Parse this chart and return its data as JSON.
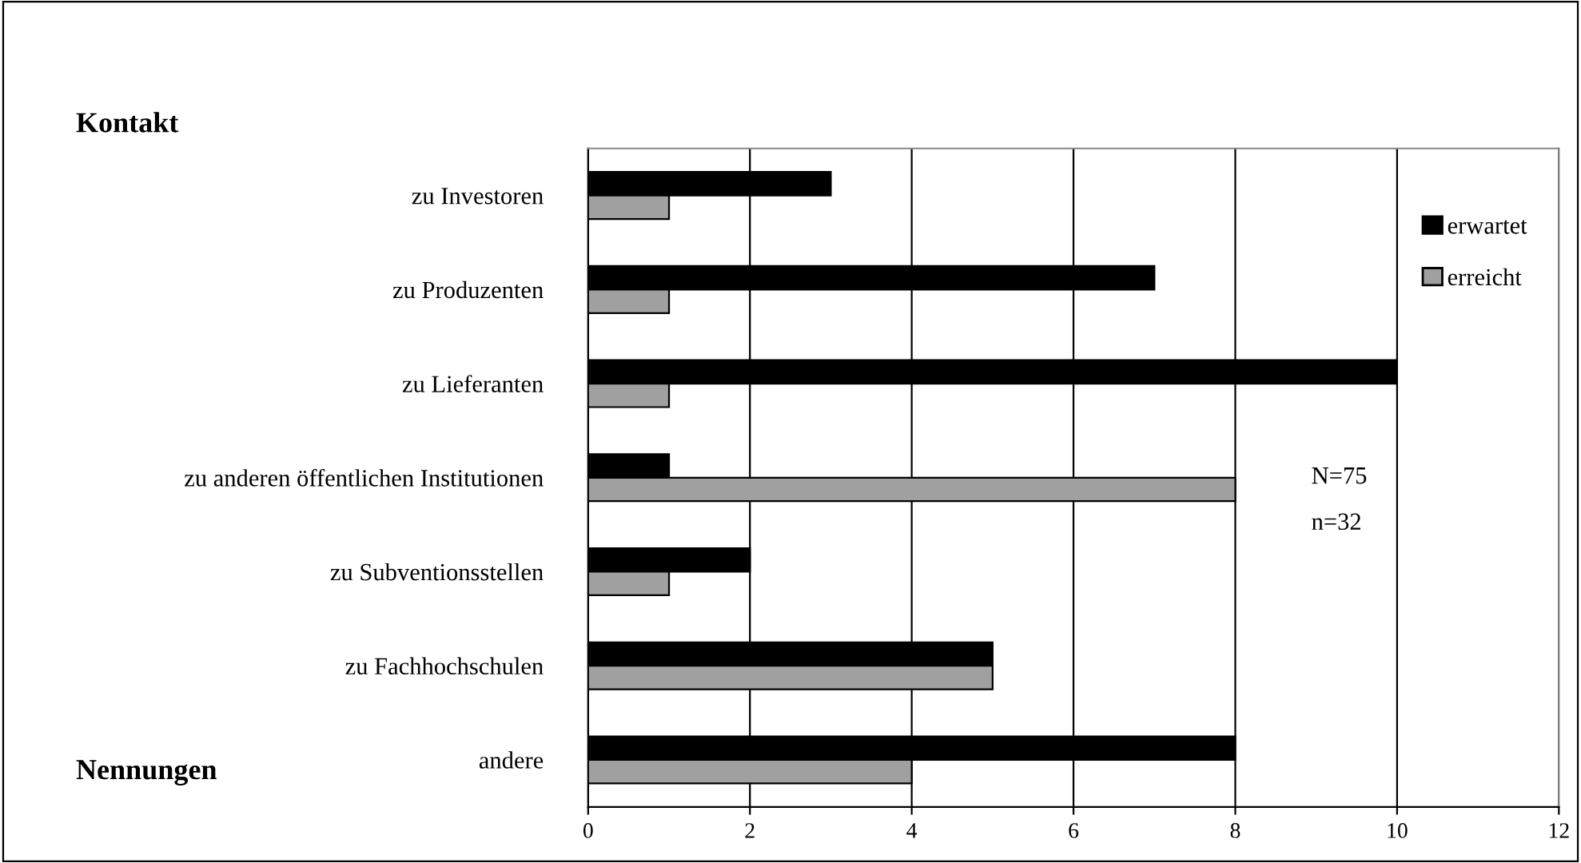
{
  "chart_data": {
    "type": "bar",
    "orientation": "horizontal",
    "ylabel": "Kontakt",
    "xlabel": "Nennungen",
    "categories": [
      "zu Investoren",
      "zu Produzenten",
      "zu Lieferanten",
      "zu anderen öffentlichen Institutionen",
      "zu Subventionsstellen",
      "zu Fachhochschulen",
      "andere"
    ],
    "series": [
      {
        "name": "erwartet",
        "color": "#000000",
        "values": [
          3,
          7,
          10,
          1,
          2,
          5,
          8
        ]
      },
      {
        "name": "erreicht",
        "color": "#a0a0a0",
        "values": [
          1,
          1,
          1,
          8,
          1,
          5,
          4
        ]
      }
    ],
    "xlim": [
      0,
      12
    ],
    "xticks": [
      0,
      2,
      4,
      6,
      8,
      10,
      12
    ],
    "grid": "x",
    "legend": "top right",
    "annotations": [
      "N=75",
      "n=32"
    ]
  }
}
